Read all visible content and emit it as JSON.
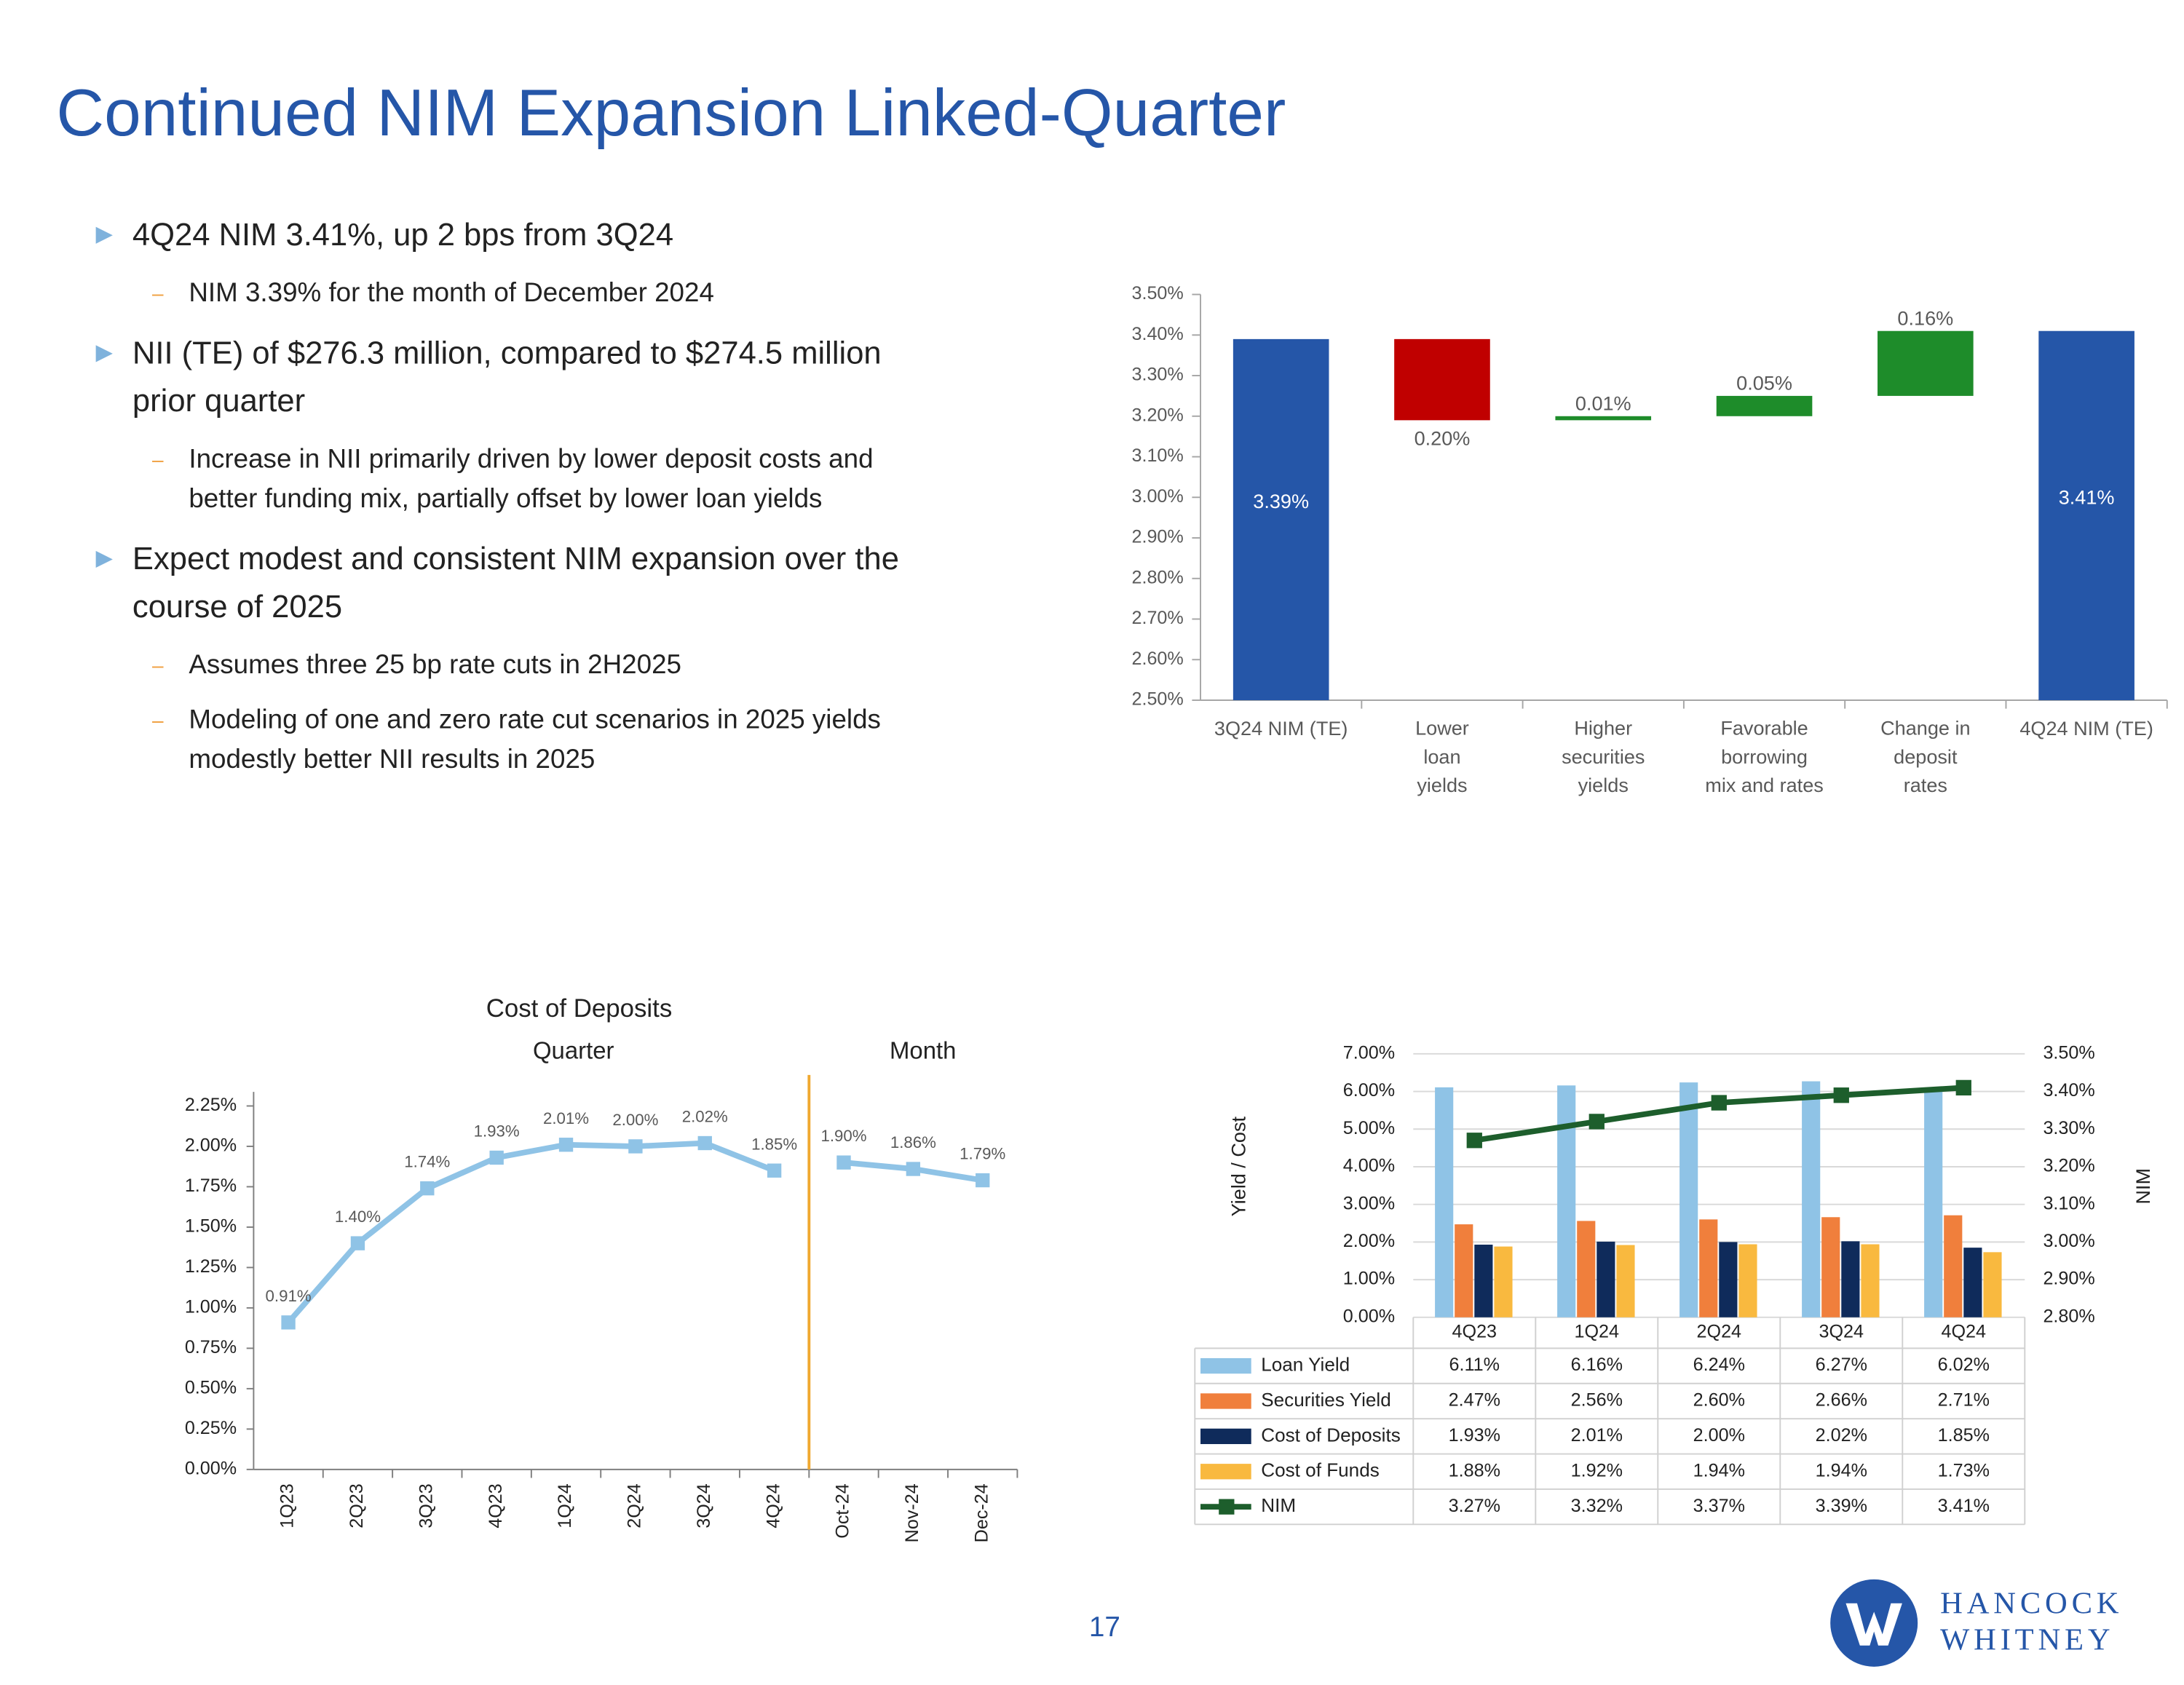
{
  "title": "Continued NIM Expansion Linked-Quarter",
  "bullets": [
    {
      "text": "4Q24 NIM 3.41%, up 2 bps from 3Q24",
      "sub": [
        "NIM 3.39% for the month of December 2024"
      ]
    },
    {
      "text": "NII (TE) of $276.3 million, compared to $274.5 million\nprior quarter",
      "sub": [
        "Increase in NII primarily driven by lower deposit costs and\nbetter funding mix, partially offset by lower loan yields"
      ]
    },
    {
      "text": "Expect modest and consistent NIM expansion over the\ncourse of 2025",
      "sub": [
        "Assumes three 25 bp rate cuts in 2H2025",
        "Modeling of one and zero rate cut scenarios in 2025 yields\nmodestly better NII results in 2025"
      ]
    }
  ],
  "chart_data": [
    {
      "type": "waterfall",
      "categories": [
        "3Q24 NIM (TE)",
        "Lower\nloan\nyields",
        "Higher\nsecurities\nyields",
        "Favorable\nborrowing\nmix and rates",
        "Change in\ndeposit\nrates",
        "4Q24 NIM (TE)"
      ],
      "values": [
        3.39,
        -0.2,
        0.01,
        0.05,
        0.16,
        3.41
      ],
      "value_labels": [
        "3.39%",
        "0.20%",
        "0.01%",
        "0.05%",
        "0.16%",
        "3.41%"
      ],
      "totals": [
        true,
        false,
        false,
        false,
        false,
        true
      ],
      "colors": {
        "total": "#2556a8",
        "increase": "#1e8c2a",
        "decrease": "#c00000"
      },
      "ylim": [
        2.5,
        3.5
      ],
      "yticks": [
        {
          "value": 2.5,
          "label": "2.50%"
        },
        {
          "value": 2.6,
          "label": "2.60%"
        },
        {
          "value": 2.7,
          "label": "2.70%"
        },
        {
          "value": 2.8,
          "label": "2.80%"
        },
        {
          "value": 2.9,
          "label": "2.90%"
        },
        {
          "value": 3.0,
          "label": "3.00%"
        },
        {
          "value": 3.1,
          "label": "3.10%"
        },
        {
          "value": 3.2,
          "label": "3.20%"
        },
        {
          "value": 3.3,
          "label": "3.30%"
        },
        {
          "value": 3.4,
          "label": "3.40%"
        },
        {
          "value": 3.5,
          "label": "3.50%"
        }
      ]
    },
    {
      "type": "line",
      "title": "Cost of Deposits",
      "categories": [
        "1Q23",
        "2Q23",
        "3Q23",
        "4Q23",
        "1Q24",
        "2Q24",
        "3Q24",
        "4Q24",
        "Oct-24",
        "Nov-24",
        "Dec-24"
      ],
      "series": [
        {
          "name": "Quarter",
          "color": "#8fc3e6",
          "values": [
            0.91,
            1.4,
            1.74,
            1.93,
            2.01,
            2.0,
            2.02,
            1.85,
            null,
            null,
            null
          ],
          "value_labels": [
            "0.91%",
            "1.40%",
            "1.74%",
            "1.93%",
            "2.01%",
            "2.00%",
            "2.02%",
            "1.85%",
            null,
            null,
            null
          ]
        },
        {
          "name": "Month",
          "color": "#8fc3e6",
          "values": [
            null,
            null,
            null,
            null,
            null,
            null,
            null,
            null,
            1.9,
            1.86,
            1.79
          ],
          "value_labels": [
            null,
            null,
            null,
            null,
            null,
            null,
            null,
            null,
            "1.90%",
            "1.86%",
            "1.79%"
          ]
        }
      ],
      "ylim": [
        0,
        2.25
      ],
      "yticks": [
        {
          "value": 0,
          "label": "0.00%"
        },
        {
          "value": 0.25,
          "label": "0.25%"
        },
        {
          "value": 0.5,
          "label": "0.50%"
        },
        {
          "value": 0.75,
          "label": "0.75%"
        },
        {
          "value": 1,
          "label": "1.00%"
        },
        {
          "value": 1.25,
          "label": "1.25%"
        },
        {
          "value": 1.5,
          "label": "1.50%"
        },
        {
          "value": 1.75,
          "label": "1.75%"
        },
        {
          "value": 2,
          "label": "2.00%"
        },
        {
          "value": 2.25,
          "label": "2.25%"
        }
      ]
    },
    {
      "type": "combo",
      "y_label": "Yield / Cost",
      "y2_label": "NIM",
      "categories": [
        "4Q23",
        "1Q24",
        "2Q24",
        "3Q24",
        "4Q24"
      ],
      "series": [
        {
          "name": "Loan Yield",
          "type": "bar",
          "color": "#8fc3e6",
          "values": [
            6.11,
            6.16,
            6.24,
            6.27,
            6.02
          ],
          "value_labels": [
            "6.11%",
            "6.16%",
            "6.24%",
            "6.27%",
            "6.02%"
          ]
        },
        {
          "name": "Securities Yield",
          "type": "bar",
          "color": "#f07f3c",
          "values": [
            2.47,
            2.56,
            2.6,
            2.66,
            2.71
          ],
          "value_labels": [
            "2.47%",
            "2.56%",
            "2.60%",
            "2.66%",
            "2.71%"
          ]
        },
        {
          "name": "Cost of Deposits",
          "type": "bar",
          "color": "#0f2b5b",
          "values": [
            1.93,
            2.01,
            2.0,
            2.02,
            1.85
          ],
          "value_labels": [
            "1.93%",
            "2.01%",
            "2.00%",
            "2.02%",
            "1.85%"
          ]
        },
        {
          "name": "Cost of Funds",
          "type": "bar",
          "color": "#f9b93f",
          "values": [
            1.88,
            1.92,
            1.94,
            1.94,
            1.73
          ],
          "value_labels": [
            "1.88%",
            "1.92%",
            "1.94%",
            "1.94%",
            "1.73%"
          ]
        },
        {
          "name": "NIM",
          "type": "line",
          "axis": "y2",
          "color": "#1d5e2c",
          "values": [
            3.27,
            3.32,
            3.37,
            3.39,
            3.41
          ],
          "value_labels": [
            "3.27%",
            "3.32%",
            "3.37%",
            "3.39%",
            "3.41%"
          ]
        }
      ],
      "ylim": [
        0,
        7
      ],
      "yticks": [
        {
          "value": 0,
          "label": "0.00%"
        },
        {
          "value": 1,
          "label": "1.00%"
        },
        {
          "value": 2,
          "label": "2.00%"
        },
        {
          "value": 3,
          "label": "3.00%"
        },
        {
          "value": 4,
          "label": "4.00%"
        },
        {
          "value": 5,
          "label": "5.00%"
        },
        {
          "value": 6,
          "label": "6.00%"
        },
        {
          "value": 7,
          "label": "7.00%"
        }
      ],
      "y2lim": [
        2.8,
        3.5
      ],
      "y2ticks": [
        {
          "value": 2.8,
          "label": "2.80%"
        },
        {
          "value": 2.9,
          "label": "2.90%"
        },
        {
          "value": 3.0,
          "label": "3.00%"
        },
        {
          "value": 3.1,
          "label": "3.10%"
        },
        {
          "value": 3.2,
          "label": "3.20%"
        },
        {
          "value": 3.3,
          "label": "3.30%"
        },
        {
          "value": 3.4,
          "label": "3.40%"
        },
        {
          "value": 3.5,
          "label": "3.50%"
        }
      ],
      "grid": true,
      "data_table": true
    }
  ],
  "page_number": "17",
  "logo": {
    "line1": "HANCOCK",
    "line2": "WHITNEY"
  }
}
